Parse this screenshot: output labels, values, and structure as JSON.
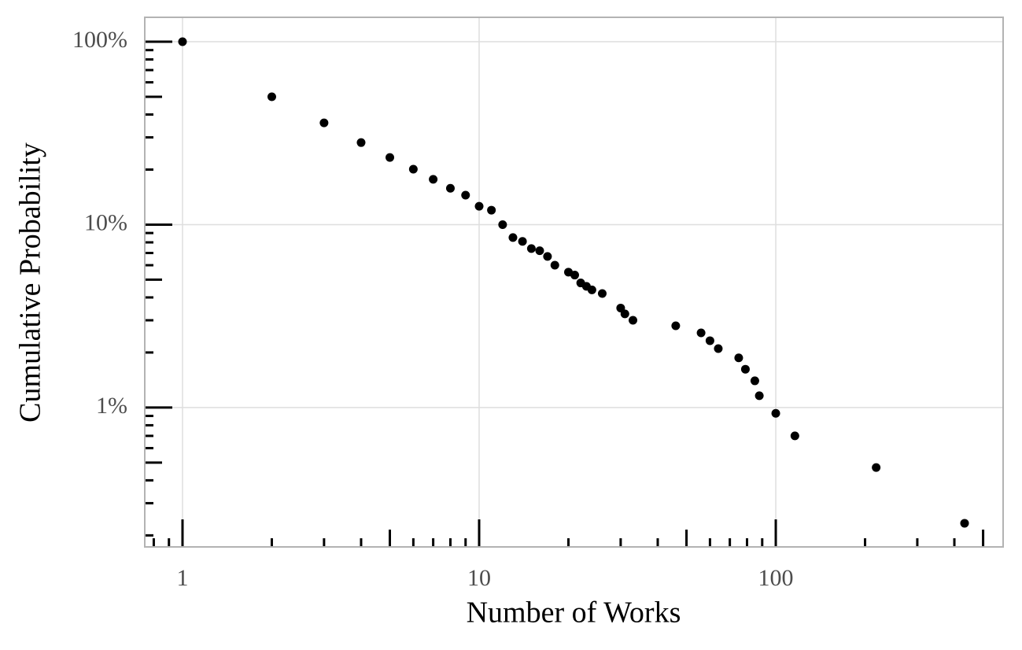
{
  "chart_data": {
    "type": "scatter",
    "x_label": "Number of Works",
    "y_label": "Cumulative Probability",
    "xlog": true,
    "ylog": true,
    "grid": true,
    "logticks": true,
    "color": "#000000",
    "xlim": [
      0.746,
      584
    ],
    "ylim": [
      0.173,
      136
    ],
    "xticks": [
      1,
      10,
      100
    ],
    "yticks": [
      {
        "value": 1,
        "label": "1%"
      },
      {
        "value": 10,
        "label": "10%"
      },
      {
        "value": 100,
        "label": "100%"
      }
    ],
    "x": [
      1,
      2,
      3,
      4,
      5,
      6,
      7,
      8,
      9,
      10,
      11,
      12,
      13,
      14,
      15,
      16,
      17,
      18,
      20,
      21,
      22,
      23,
      24,
      26,
      30,
      31,
      33,
      46,
      56,
      60,
      64,
      75,
      79,
      85,
      88,
      100,
      116,
      218,
      433
    ],
    "values": [
      100,
      50,
      36,
      28.1,
      23.3,
      20.1,
      17.7,
      15.8,
      14.5,
      12.6,
      12.0,
      10.0,
      8.5,
      8.1,
      7.4,
      7.2,
      6.7,
      6.0,
      5.5,
      5.3,
      4.8,
      4.6,
      4.4,
      4.2,
      3.5,
      3.25,
      3.0,
      2.8,
      2.56,
      2.32,
      2.1,
      1.87,
      1.62,
      1.4,
      1.16,
      0.93,
      0.7,
      0.47,
      0.233
    ]
  }
}
